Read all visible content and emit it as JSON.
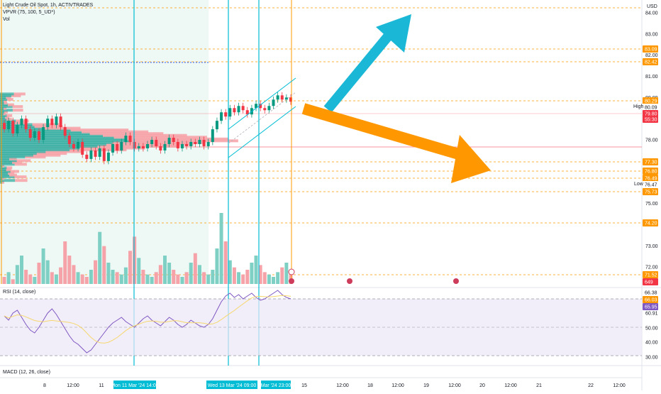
{
  "header": {
    "title": "Light Crude Oil Spot, 1h, ACTIVTRADES",
    "vpvr_label": "VPVR (75, 100, 5_UD*)",
    "vol_label": "Vol",
    "currency": "USD"
  },
  "rsi_label": "RSI (14, close)",
  "macd_label": "MACD (12, 26, close)",
  "price_axis": {
    "ticks": [
      "84.00",
      "83.00",
      "82.00",
      "81.00",
      "80.00",
      "79.00",
      "78.00",
      "77.00",
      "76.00",
      "75.00",
      "74.00",
      "73.00",
      "72.00"
    ],
    "min": 71.2,
    "max": 84.6
  },
  "price_tags": [
    {
      "text": "83.09",
      "kind": "orange"
    },
    {
      "text": "82.42",
      "kind": "orange"
    },
    {
      "text": "80.29",
      "kind": "orange"
    },
    {
      "text": "80.09",
      "kind": "plain"
    },
    {
      "text": "79.80",
      "kind": "red"
    },
    {
      "text": "55:30",
      "kind": "red"
    },
    {
      "text": "77.30",
      "kind": "orange"
    },
    {
      "text": "76.80",
      "kind": "orange"
    },
    {
      "text": "76.49",
      "kind": "orange"
    },
    {
      "text": "76.47",
      "kind": "plain"
    },
    {
      "text": "75.73",
      "kind": "orange"
    },
    {
      "text": "74.20",
      "kind": "orange"
    },
    {
      "text": "71.52",
      "kind": "orange"
    },
    {
      "text": "649",
      "kind": "red"
    }
  ],
  "hl_labels": {
    "high": "High",
    "low": "Low"
  },
  "rsi_axis": {
    "ticks": [
      "70.00",
      "60.91",
      "50.00",
      "40.00",
      "30.00"
    ],
    "tags": [
      {
        "text": "66.38",
        "kind": "plain"
      },
      {
        "text": "66.03",
        "kind": "orange"
      },
      {
        "text": "65.95",
        "kind": "purple"
      }
    ]
  },
  "time_axis": {
    "labels": [
      "8",
      "12:00",
      "11",
      "15",
      "12:00",
      "18",
      "12:00",
      "19",
      "12:00",
      "20",
      "12:00",
      "21",
      "22",
      "12:00"
    ],
    "highlights": [
      "Mon 11 Mar '24  14:00",
      "Wed 13 Mar '24  09:00",
      "Mar '24  23:00"
    ]
  },
  "chart_data": {
    "type": "candlestick",
    "title": "Light Crude Oil Spot, 1h, ACTIVTRADES",
    "candles_approx": [
      [
        78.8,
        78.5
      ],
      [
        78.5,
        78.9
      ],
      [
        78.9,
        78.3
      ],
      [
        78.3,
        78.7
      ],
      [
        78.7,
        79.0
      ],
      [
        79.0,
        78.5
      ],
      [
        78.5,
        78.1
      ],
      [
        78.1,
        78.4
      ],
      [
        78.4,
        78.0
      ],
      [
        78.0,
        78.6
      ],
      [
        78.6,
        79.0
      ],
      [
        79.0,
        78.7
      ],
      [
        78.7,
        79.1
      ],
      [
        79.1,
        78.6
      ],
      [
        78.6,
        78.2
      ],
      [
        78.2,
        77.8
      ],
      [
        77.8,
        77.6
      ],
      [
        77.6,
        77.9
      ],
      [
        77.9,
        77.3
      ],
      [
        77.3,
        77.1
      ],
      [
        77.1,
        77.5
      ],
      [
        77.5,
        77.2
      ],
      [
        77.2,
        77.6
      ],
      [
        77.6,
        77.0
      ],
      [
        77.0,
        77.4
      ],
      [
        77.4,
        77.8
      ],
      [
        77.8,
        77.5
      ],
      [
        77.5,
        77.9
      ],
      [
        77.9,
        78.2
      ],
      [
        78.2,
        77.9
      ],
      [
        77.9,
        77.6
      ],
      [
        77.6,
        77.7
      ],
      [
        77.7,
        77.6
      ],
      [
        77.6,
        77.8
      ],
      [
        77.8,
        78.0
      ],
      [
        78.0,
        77.7
      ],
      [
        77.7,
        77.5
      ],
      [
        77.5,
        77.8
      ],
      [
        77.8,
        78.1
      ],
      [
        78.1,
        77.9
      ],
      [
        77.9,
        77.6
      ],
      [
        77.6,
        77.8
      ],
      [
        77.8,
        77.7
      ],
      [
        77.7,
        77.9
      ],
      [
        77.9,
        77.8
      ],
      [
        77.8,
        78.0
      ],
      [
        78.0,
        77.7
      ],
      [
        77.7,
        77.9
      ],
      [
        77.9,
        78.5
      ],
      [
        78.5,
        78.9
      ],
      [
        78.9,
        79.3
      ],
      [
        79.3,
        79.1
      ],
      [
        79.1,
        79.5
      ],
      [
        79.5,
        79.3
      ],
      [
        79.3,
        79.6
      ],
      [
        79.6,
        79.4
      ],
      [
        79.4,
        79.2
      ],
      [
        79.2,
        79.5
      ],
      [
        79.5,
        79.7
      ],
      [
        79.7,
        79.5
      ],
      [
        79.5,
        79.4
      ],
      [
        79.4,
        79.6
      ],
      [
        79.6,
        79.9
      ],
      [
        79.9,
        80.1
      ],
      [
        80.1,
        79.9
      ],
      [
        79.9,
        80.0
      ],
      [
        80.0,
        79.8
      ]
    ],
    "volume_approx": [
      3,
      5,
      2,
      8,
      12,
      6,
      4,
      3,
      9,
      15,
      10,
      5,
      4,
      7,
      18,
      12,
      8,
      5,
      4,
      3,
      6,
      10,
      22,
      16,
      9,
      6,
      5,
      4,
      7,
      14,
      20,
      11,
      6,
      4,
      3,
      5,
      8,
      12,
      9,
      6,
      4,
      3,
      5,
      9,
      13,
      8,
      5,
      4,
      6,
      15,
      30,
      18,
      10,
      7,
      5,
      4,
      6,
      9,
      12,
      8,
      5,
      4,
      3,
      5,
      7,
      9,
      6
    ],
    "rsi_approx": [
      58,
      55,
      60,
      62,
      57,
      52,
      48,
      46,
      50,
      55,
      60,
      63,
      59,
      54,
      49,
      44,
      40,
      38,
      35,
      32,
      34,
      38,
      42,
      46,
      50,
      53,
      55,
      57,
      54,
      52,
      50,
      53,
      56,
      58,
      55,
      53,
      51,
      54,
      57,
      55,
      52,
      50,
      52,
      55,
      53,
      51,
      50,
      52,
      56,
      62,
      68,
      72,
      74,
      71,
      73,
      70,
      72,
      74,
      71,
      69,
      70,
      72,
      74,
      76,
      73,
      71,
      70
    ],
    "price_range": [
      71.2,
      84.6
    ]
  }
}
